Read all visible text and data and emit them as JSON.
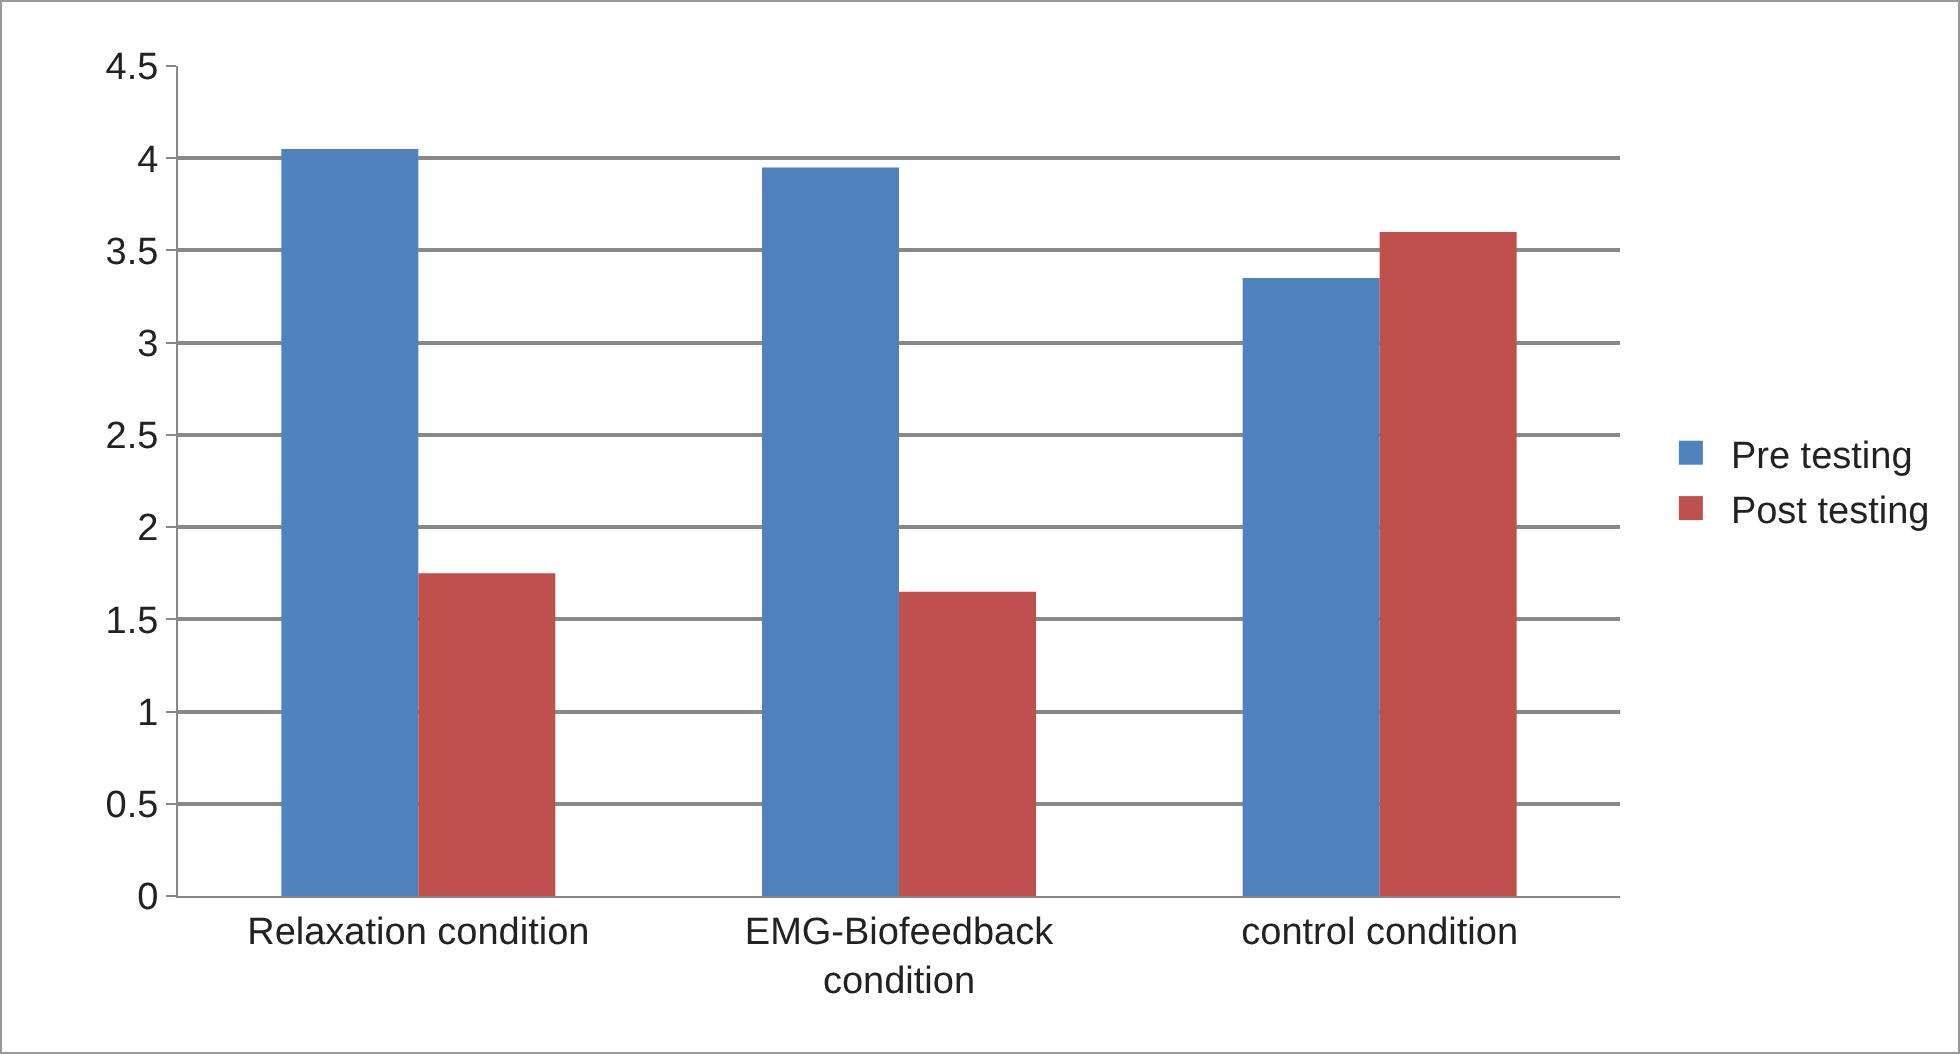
{
  "chart_data": {
    "type": "bar",
    "categories": [
      "Relaxation condition",
      "EMG-Biofeedback condition",
      "control condition"
    ],
    "series": [
      {
        "name": "Pre testing",
        "color": "#4f81bd",
        "values": [
          4.05,
          3.95,
          3.35
        ]
      },
      {
        "name": "Post testing",
        "color": "#c0504d",
        "values": [
          1.75,
          1.65,
          3.6
        ]
      }
    ],
    "ylim": [
      0,
      4.5
    ],
    "yticks": [
      0,
      {
        "value": 0.5,
        "label": "0.5"
      },
      1,
      {
        "value": 1.5,
        "label": "1.5"
      },
      2,
      {
        "value": 2.5,
        "label": "2.5"
      },
      3,
      {
        "value": 3.5,
        "label": "3.5"
      },
      4,
      {
        "value": 4.5,
        "label": "4.5"
      }
    ],
    "grid": "y",
    "legend": "right"
  }
}
